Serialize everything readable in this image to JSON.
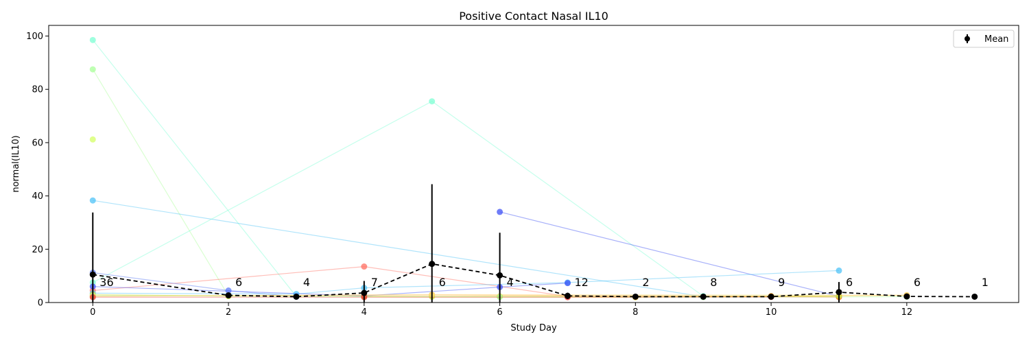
{
  "chart_data": {
    "type": "line",
    "title": "Positive Contact Nasal IL10",
    "xlabel": "Study Day",
    "ylabel": "normal(IL10)",
    "xlim": [
      -0.65,
      13.65
    ],
    "ylim": [
      0,
      104
    ],
    "xticks": [
      0,
      2,
      4,
      6,
      8,
      10,
      12
    ],
    "yticks": [
      0,
      20,
      40,
      60,
      80,
      100
    ],
    "grid": false,
    "legend": {
      "placement": "top-right",
      "entries": [
        "Mean"
      ]
    },
    "series": [
      {
        "color": "#7fffd4",
        "points": [
          [
            0,
            98.5
          ],
          [
            3,
            2.3
          ]
        ]
      },
      {
        "color": "#aaff99",
        "points": [
          [
            0,
            87.5
          ],
          [
            2,
            2.5
          ]
        ]
      },
      {
        "color": "#d4ff66",
        "points": [
          [
            0,
            61.2
          ]
        ]
      },
      {
        "color": "#4fc3f7",
        "points": [
          [
            0,
            38.3
          ],
          [
            9,
            2.2
          ]
        ]
      },
      {
        "color": "#7fffd4",
        "points": [
          [
            0,
            7.5
          ],
          [
            5,
            75.5
          ],
          [
            9,
            2.4
          ]
        ]
      },
      {
        "color": "#ff6f61",
        "points": [
          [
            0,
            4.5
          ],
          [
            4,
            13.5
          ],
          [
            7,
            2.3
          ],
          [
            11,
            2.0
          ]
        ]
      },
      {
        "color": "#3f51f5",
        "points": [
          [
            6,
            34.0
          ],
          [
            11,
            2.3
          ]
        ]
      },
      {
        "color": "#5b7bf5",
        "points": [
          [
            0,
            11.2
          ],
          [
            2,
            4.5
          ],
          [
            3,
            2.2
          ]
        ]
      },
      {
        "color": "#4fc3f7",
        "points": [
          [
            0,
            3.5
          ],
          [
            3,
            3.2
          ],
          [
            4,
            5.5
          ],
          [
            7,
            7.5
          ],
          [
            11,
            12.0
          ]
        ]
      },
      {
        "color": "#3f51f5",
        "points": [
          [
            0,
            6.0
          ],
          [
            4,
            2.5
          ],
          [
            6,
            5.8
          ],
          [
            7,
            7.3
          ]
        ]
      },
      {
        "color": "#ff9800",
        "points": [
          [
            0,
            2.5
          ],
          [
            5,
            2.8
          ],
          [
            10,
            2.4
          ],
          [
            11,
            2.1
          ]
        ]
      },
      {
        "color": "#ffb300",
        "points": [
          [
            4,
            2.2
          ],
          [
            8,
            2.0
          ],
          [
            12,
            2.7
          ]
        ]
      },
      {
        "color": "#cddc39",
        "points": [
          [
            0,
            3.0
          ],
          [
            2,
            2.4
          ],
          [
            5,
            2.2
          ],
          [
            6,
            2.3
          ],
          [
            11,
            2.5
          ]
        ]
      },
      {
        "color": "#aaff99",
        "points": [
          [
            0,
            2.6
          ],
          [
            6,
            2.1
          ],
          [
            9,
            2.0
          ],
          [
            12,
            2.2
          ]
        ]
      },
      {
        "color": "#ffe082",
        "points": [
          [
            0,
            2.3
          ],
          [
            5,
            3.0
          ],
          [
            12,
            2.8
          ]
        ]
      },
      {
        "color": "#e53935",
        "points": [
          [
            0,
            2.0
          ],
          [
            4,
            2.0
          ],
          [
            7,
            2.0
          ],
          [
            10,
            2.1
          ]
        ]
      }
    ],
    "mean": {
      "name": "Mean",
      "x": [
        0,
        2,
        3,
        4,
        5,
        6,
        7,
        8,
        9,
        10,
        11,
        12,
        13
      ],
      "y": [
        10.5,
        2.7,
        2.2,
        3.6,
        14.5,
        10.2,
        2.5,
        2.2,
        2.2,
        2.2,
        3.9,
        2.3,
        2.2
      ],
      "err": [
        23.3,
        0.5,
        0.4,
        4.5,
        29.9,
        16.0,
        1.2,
        0.3,
        0.3,
        0.3,
        3.8,
        0.3,
        0.0
      ]
    },
    "counts": [
      {
        "x": 0,
        "label": "36"
      },
      {
        "x": 2,
        "label": "6"
      },
      {
        "x": 3,
        "label": "4"
      },
      {
        "x": 4,
        "label": "7"
      },
      {
        "x": 5,
        "label": "6"
      },
      {
        "x": 6,
        "label": "4"
      },
      {
        "x": 7,
        "label": "12"
      },
      {
        "x": 8,
        "label": "2"
      },
      {
        "x": 9,
        "label": "8"
      },
      {
        "x": 10,
        "label": "9"
      },
      {
        "x": 11,
        "label": "6"
      },
      {
        "x": 12,
        "label": "6"
      },
      {
        "x": 13,
        "label": "1"
      }
    ]
  }
}
